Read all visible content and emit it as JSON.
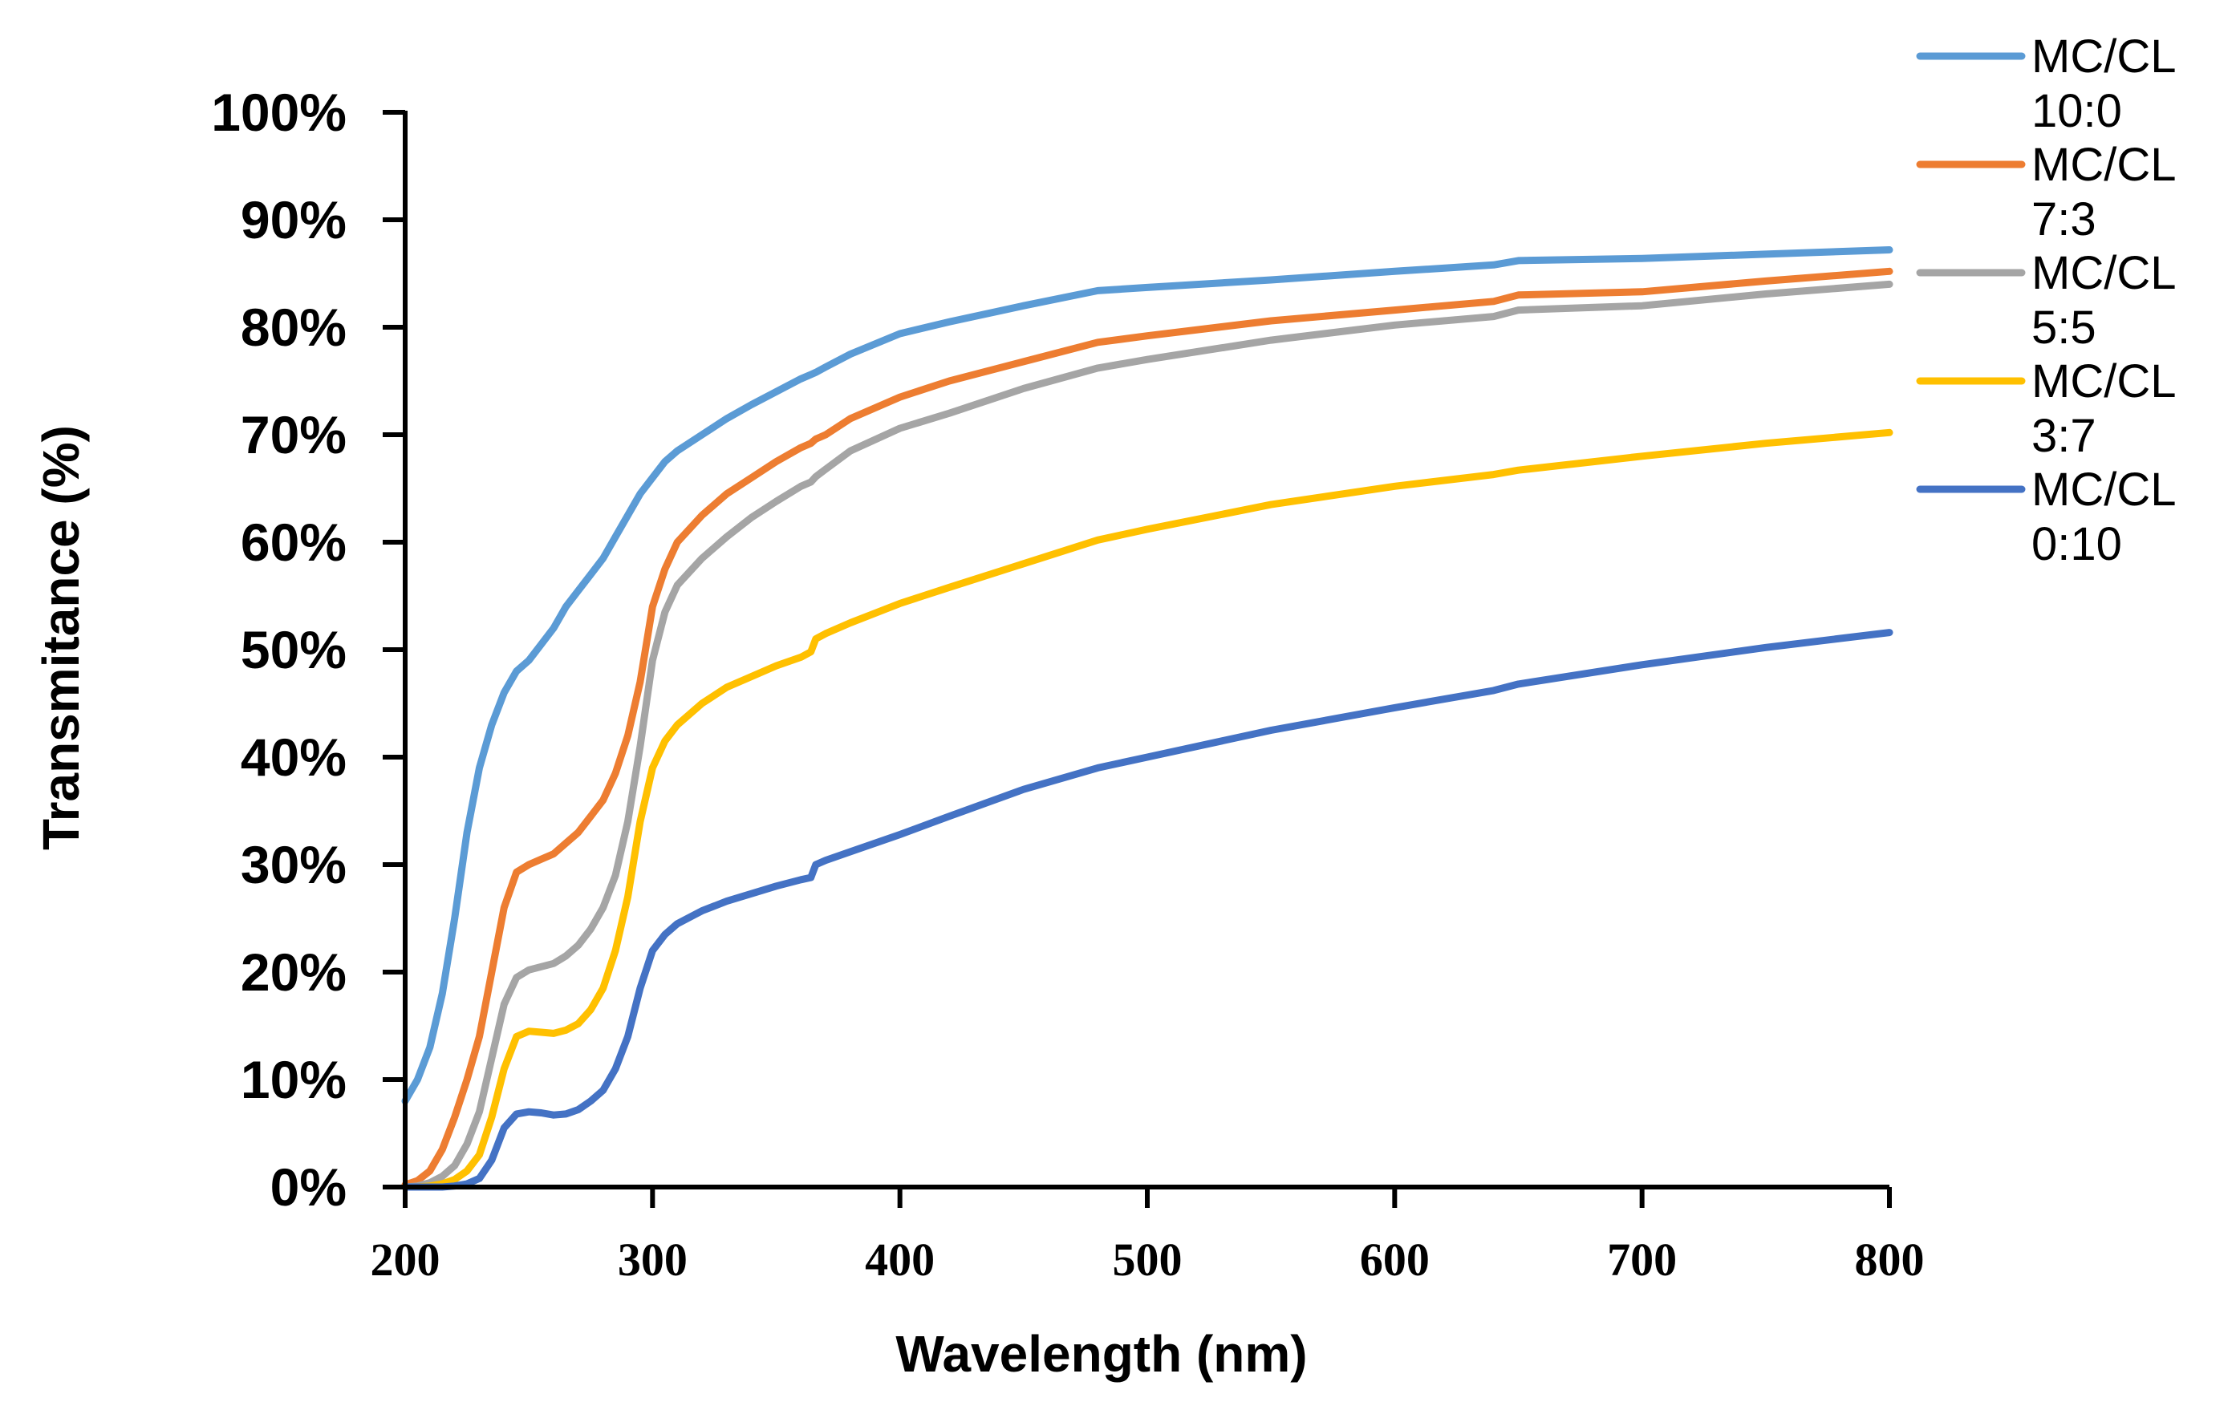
{
  "chart_data": {
    "type": "line",
    "title": "",
    "xlabel": "Wavelength (nm)",
    "ylabel": "Transmitance (%)",
    "xlim": [
      200,
      800
    ],
    "ylim": [
      0,
      100
    ],
    "x_ticks": [
      200,
      300,
      400,
      500,
      600,
      700,
      800
    ],
    "y_ticks": [
      0,
      10,
      20,
      30,
      40,
      50,
      60,
      70,
      80,
      90,
      100
    ],
    "x_tick_labels": [
      "200",
      "300",
      "400",
      "500",
      "600",
      "700",
      "800"
    ],
    "y_tick_labels": [
      "0%",
      "10%",
      "20%",
      "30%",
      "40%",
      "50%",
      "60%",
      "70%",
      "80%",
      "90%",
      "100%"
    ],
    "grid": false,
    "legend_position": "top-right",
    "x": [
      200,
      205,
      210,
      215,
      220,
      225,
      230,
      235,
      240,
      245,
      250,
      255,
      260,
      265,
      270,
      275,
      280,
      285,
      290,
      295,
      300,
      305,
      310,
      320,
      330,
      340,
      350,
      360,
      364,
      366,
      370,
      380,
      400,
      420,
      450,
      480,
      500,
      550,
      600,
      640,
      650,
      700,
      750,
      800
    ],
    "series": [
      {
        "name": "MC/CL 10:0",
        "legend_line1": "MC/CL",
        "legend_line2": "10:0",
        "color": "#5B9BD5",
        "values": [
          8,
          10,
          13,
          18,
          25,
          33,
          39,
          43,
          46,
          48,
          49,
          50.5,
          52,
          54,
          55.5,
          57,
          58.5,
          60.5,
          62.5,
          64.5,
          66,
          67.5,
          68.5,
          70,
          71.5,
          72.8,
          74,
          75.2,
          75.6,
          75.8,
          76.3,
          77.5,
          79.4,
          80.5,
          82,
          83.4,
          83.7,
          84.4,
          85.2,
          85.8,
          86.2,
          86.4,
          86.8,
          87.2
        ]
      },
      {
        "name": "MC/CL 7:3",
        "legend_line1": "MC/CL",
        "legend_line2": "7:3",
        "color": "#ED7D31",
        "values": [
          0.2,
          0.6,
          1.5,
          3.5,
          6.5,
          10,
          14,
          20,
          26,
          29.3,
          30,
          30.5,
          31,
          32,
          33,
          34.5,
          36,
          38.5,
          42,
          47,
          54,
          57.5,
          60,
          62.5,
          64.5,
          66,
          67.5,
          68.8,
          69.2,
          69.6,
          70,
          71.5,
          73.5,
          75,
          76.8,
          78.6,
          79.2,
          80.6,
          81.6,
          82.4,
          83,
          83.3,
          84.3,
          85.2
        ]
      },
      {
        "name": "MC/CL 5:5",
        "legend_line1": "MC/CL",
        "legend_line2": "5:5",
        "color": "#A5A5A5",
        "values": [
          0,
          0.1,
          0.4,
          1,
          2,
          4,
          7,
          12,
          17,
          19.5,
          20.2,
          20.5,
          20.8,
          21.5,
          22.5,
          24,
          26,
          29,
          34,
          41,
          49,
          53.5,
          56,
          58.5,
          60.5,
          62.3,
          63.8,
          65.2,
          65.6,
          66.1,
          66.8,
          68.5,
          70.6,
          72,
          74.3,
          76.2,
          77,
          78.8,
          80.2,
          81,
          81.6,
          82,
          83.1,
          84
        ]
      },
      {
        "name": "MC/CL 3:7",
        "legend_line1": "MC/CL",
        "legend_line2": "3:7",
        "color": "#FFC000",
        "values": [
          0,
          0,
          0.1,
          0.3,
          0.7,
          1.5,
          3,
          6.5,
          11,
          14,
          14.5,
          14.4,
          14.3,
          14.6,
          15.2,
          16.5,
          18.5,
          22,
          27,
          34,
          39,
          41.5,
          43,
          45,
          46.5,
          47.5,
          48.5,
          49.3,
          49.8,
          51,
          51.5,
          52.5,
          54.3,
          55.8,
          58,
          60.2,
          61.2,
          63.5,
          65.2,
          66.3,
          66.7,
          68,
          69.2,
          70.2
        ]
      },
      {
        "name": "MC/CL 0:10",
        "legend_line1": "MC/CL",
        "legend_line2": "0:10",
        "color": "#4472C4",
        "values": [
          0,
          0,
          0,
          0,
          0.1,
          0.3,
          0.8,
          2.5,
          5.5,
          6.8,
          7,
          6.9,
          6.7,
          6.8,
          7.2,
          8,
          9,
          11,
          14,
          18.5,
          22,
          23.5,
          24.5,
          25.7,
          26.6,
          27.3,
          28,
          28.6,
          28.8,
          30,
          30.4,
          31.2,
          32.8,
          34.5,
          37,
          39,
          40,
          42.5,
          44.6,
          46.2,
          46.8,
          48.6,
          50.2,
          51.6
        ]
      }
    ]
  }
}
